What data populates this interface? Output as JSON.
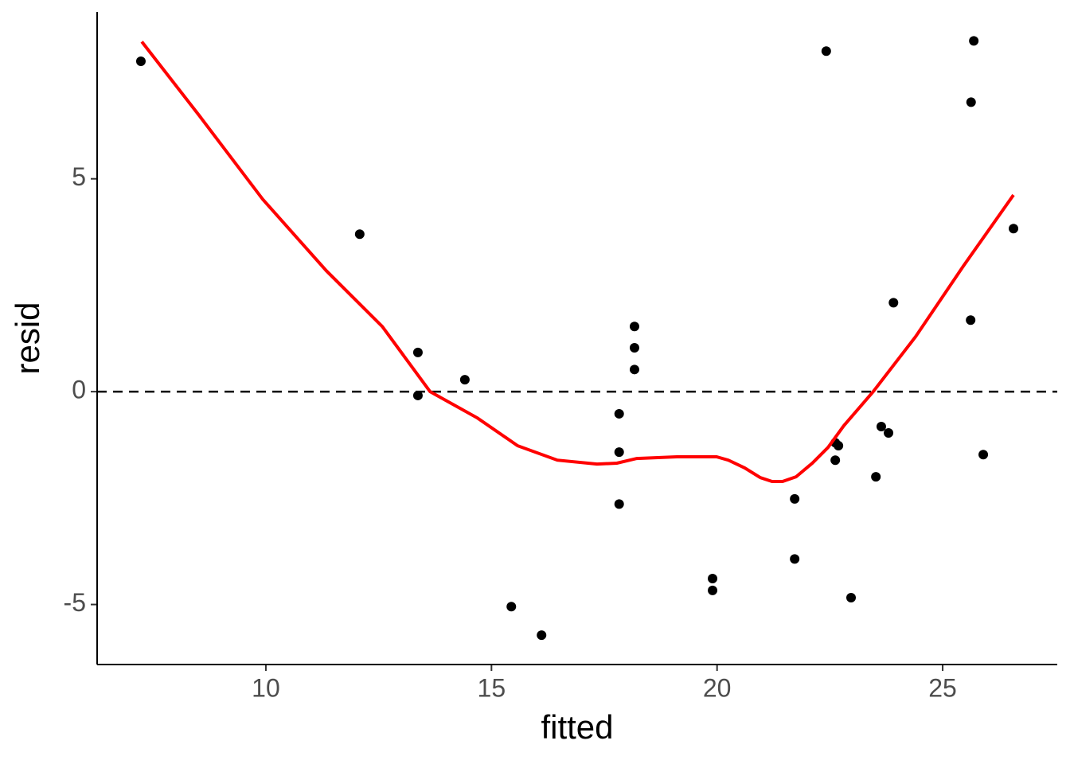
{
  "chart_data": {
    "type": "scatter",
    "x_label": "fitted",
    "y_label": "resid",
    "xlim": [
      6.26,
      27.54
    ],
    "ylim": [
      -6.41,
      8.92
    ],
    "xticks": [
      10,
      15,
      20,
      25
    ],
    "yticks": [
      -5,
      0,
      5
    ],
    "hline": 0,
    "color": "#000000",
    "x": [
      7.23,
      12.08,
      13.37,
      13.37,
      14.41,
      15.44,
      16.11,
      17.83,
      17.83,
      17.83,
      18.17,
      18.17,
      18.17,
      19.9,
      19.9,
      21.72,
      21.72,
      22.42,
      22.62,
      22.69,
      22.62,
      22.97,
      23.52,
      23.64,
      23.8,
      23.91,
      25.62,
      25.63,
      25.69,
      25.9,
      26.57
    ],
    "values": [
      7.76,
      3.7,
      0.92,
      -0.09,
      0.28,
      -5.05,
      -5.72,
      -0.52,
      -1.42,
      -2.64,
      1.53,
      1.03,
      0.52,
      -4.39,
      -4.67,
      -2.52,
      -3.93,
      8.0,
      -1.2,
      -1.27,
      -1.61,
      -4.84,
      -2.0,
      -0.82,
      -0.97,
      2.09,
      1.68,
      6.8,
      8.24,
      -1.48,
      3.83
    ],
    "smooth": {
      "color": "#ff0000",
      "x": [
        7.25,
        8.52,
        9.93,
        11.34,
        12.58,
        13.64,
        14.69,
        15.58,
        16.46,
        17.34,
        17.78,
        18.22,
        19.11,
        19.99,
        20.25,
        20.61,
        20.96,
        21.22,
        21.45,
        21.75,
        22.11,
        22.46,
        22.81,
        23.46,
        24.4,
        25.46,
        26.57
      ],
      "values": [
        8.22,
        6.49,
        4.52,
        2.84,
        1.53,
        0,
        -0.62,
        -1.27,
        -1.61,
        -1.7,
        -1.68,
        -1.57,
        -1.53,
        -1.53,
        -1.61,
        -1.79,
        -2.02,
        -2.11,
        -2.11,
        -2.0,
        -1.68,
        -1.31,
        -0.8,
        0,
        1.29,
        2.95,
        4.62
      ]
    }
  }
}
